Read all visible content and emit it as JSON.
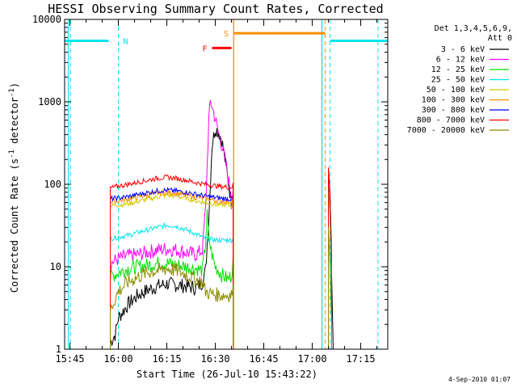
{
  "chart_data": {
    "type": "line",
    "title": "HESSI Observing Summary Count Rates, Corrected",
    "xlabel": "Start Time (26-Jul-10 15:43:22)",
    "ylabel": "Corrected Count Rate (s-1 detector-1)",
    "yscale": "log",
    "ylim": [
      1,
      10000
    ],
    "xlim": [
      "15:43:22",
      "17:23:22"
    ],
    "x_ticks": [
      "15:45",
      "16:00",
      "16:15",
      "16:30",
      "16:45",
      "17:00",
      "17:15"
    ],
    "y_ticks": [
      "1",
      "10",
      "100",
      "1000",
      "10000"
    ],
    "legend": {
      "placement": "right-outside",
      "title_lines": [
        "Det 1,3,4,5,6,9,",
        "Att 0"
      ]
    },
    "series": [
      {
        "name": "3 - 6 keV",
        "color": "#000000",
        "points": [
          [
            "15:57:30",
            1.2
          ],
          [
            "15:59",
            1.5
          ],
          [
            "16:00",
            2.4
          ],
          [
            "16:03",
            3.5
          ],
          [
            "16:06",
            4.5
          ],
          [
            "16:09",
            5.2
          ],
          [
            "16:12",
            5.8
          ],
          [
            "16:15",
            6.2
          ],
          [
            "16:18",
            6.0
          ],
          [
            "16:21",
            5.8
          ],
          [
            "16:24",
            5.5
          ],
          [
            "16:26",
            6.5
          ],
          [
            "16:27",
            9
          ],
          [
            "16:28",
            40
          ],
          [
            "16:29",
            300
          ],
          [
            "16:30",
            480
          ],
          [
            "16:31",
            430
          ],
          [
            "16:32",
            350
          ],
          [
            "16:33",
            200
          ],
          [
            "16:34",
            110
          ],
          [
            "16:35",
            60
          ],
          [
            "16:35:30",
            80
          ]
        ],
        "late": [
          [
            "17:05",
            140
          ],
          [
            "17:05:30",
            60
          ],
          [
            "17:06",
            8
          ],
          [
            "17:06:30",
            1
          ]
        ]
      },
      {
        "name": "6 - 12 keV",
        "color": "#ff00ff",
        "points": [
          [
            "15:57:30",
            11
          ],
          [
            "16:00",
            12.5
          ],
          [
            "16:03",
            13.5
          ],
          [
            "16:06",
            14
          ],
          [
            "16:09",
            15
          ],
          [
            "16:12",
            16
          ],
          [
            "16:15",
            16.5
          ],
          [
            "16:18",
            16
          ],
          [
            "16:21",
            15
          ],
          [
            "16:24",
            14
          ],
          [
            "16:26",
            16
          ],
          [
            "16:27",
            50
          ],
          [
            "16:28",
            600
          ],
          [
            "16:28:30",
            1000
          ],
          [
            "16:29",
            900
          ],
          [
            "16:30",
            620
          ],
          [
            "16:31",
            420
          ],
          [
            "16:32",
            300
          ],
          [
            "16:33",
            200
          ],
          [
            "16:34",
            120
          ],
          [
            "16:35",
            70
          ],
          [
            "16:35:30",
            90
          ]
        ],
        "late": [
          [
            "17:05",
            150
          ],
          [
            "17:05:30",
            70
          ],
          [
            "17:06",
            5
          ]
        ]
      },
      {
        "name": "12 - 25 keV",
        "color": "#00e000",
        "points": [
          [
            "15:57:30",
            7.5
          ],
          [
            "16:00",
            8.5
          ],
          [
            "16:03",
            9.5
          ],
          [
            "16:06",
            10
          ],
          [
            "16:09",
            10.5
          ],
          [
            "16:12",
            11
          ],
          [
            "16:15",
            11
          ],
          [
            "16:18",
            10.5
          ],
          [
            "16:21",
            10
          ],
          [
            "16:24",
            9.5
          ],
          [
            "16:26",
            9
          ],
          [
            "16:27",
            20
          ],
          [
            "16:27:30",
            42
          ],
          [
            "16:28",
            22
          ],
          [
            "16:29",
            14
          ],
          [
            "16:30",
            10
          ],
          [
            "16:31",
            9
          ],
          [
            "16:32",
            8
          ],
          [
            "16:33",
            7.5
          ],
          [
            "16:34",
            7
          ],
          [
            "16:35",
            8
          ],
          [
            "16:35:30",
            12
          ]
        ],
        "late": [
          [
            "17:05",
            100
          ],
          [
            "17:05:30",
            40
          ],
          [
            "17:06",
            5
          ]
        ]
      },
      {
        "name": "25 - 50 keV",
        "color": "#00e5ee",
        "points": [
          [
            "15:57:30",
            22
          ],
          [
            "16:00",
            23
          ],
          [
            "16:03",
            24
          ],
          [
            "16:06",
            26
          ],
          [
            "16:09",
            28
          ],
          [
            "16:12",
            30
          ],
          [
            "16:15",
            32
          ],
          [
            "16:18",
            31
          ],
          [
            "16:21",
            28
          ],
          [
            "16:24",
            25
          ],
          [
            "16:27",
            22
          ],
          [
            "16:30",
            21
          ],
          [
            "16:33",
            21
          ],
          [
            "16:35",
            21
          ],
          [
            "16:35:30",
            22
          ]
        ],
        "late": [
          [
            "17:05",
            130
          ],
          [
            "17:05:30",
            60
          ],
          [
            "17:06",
            5
          ]
        ]
      },
      {
        "name": "50 - 100 keV",
        "color": "#d8c800",
        "points": [
          [
            "15:57:30",
            55
          ],
          [
            "16:00",
            56
          ],
          [
            "16:03",
            58
          ],
          [
            "16:06",
            62
          ],
          [
            "16:09",
            66
          ],
          [
            "16:12",
            70
          ],
          [
            "16:15",
            74
          ],
          [
            "16:18",
            72
          ],
          [
            "16:21",
            68
          ],
          [
            "16:24",
            63
          ],
          [
            "16:27",
            60
          ],
          [
            "16:30",
            57
          ],
          [
            "16:33",
            56
          ],
          [
            "16:35",
            55
          ],
          [
            "16:35:30",
            58
          ]
        ],
        "late": [
          [
            "17:05",
            140
          ],
          [
            "17:05:30",
            70
          ],
          [
            "17:06",
            20
          ]
        ]
      },
      {
        "name": "100 - 300 keV",
        "color": "#ff8c00",
        "points": [
          [
            "15:57:30",
            62
          ],
          [
            "16:00",
            63
          ],
          [
            "16:03",
            66
          ],
          [
            "16:06",
            70
          ],
          [
            "16:09",
            74
          ],
          [
            "16:12",
            78
          ],
          [
            "16:15",
            80
          ],
          [
            "16:18",
            78
          ],
          [
            "16:21",
            74
          ],
          [
            "16:24",
            70
          ],
          [
            "16:27",
            67
          ],
          [
            "16:30",
            64
          ],
          [
            "16:33",
            62
          ],
          [
            "16:35",
            62
          ],
          [
            "16:35:30",
            65
          ]
        ],
        "late": [
          [
            "17:05",
            155
          ],
          [
            "17:05:30",
            80
          ],
          [
            "17:06",
            15
          ]
        ]
      },
      {
        "name": "300 - 800 keV",
        "color": "#0000ff",
        "points": [
          [
            "15:57:30",
            67
          ],
          [
            "16:00",
            68
          ],
          [
            "16:03",
            71
          ],
          [
            "16:06",
            75
          ],
          [
            "16:09",
            79
          ],
          [
            "16:12",
            83
          ],
          [
            "16:15",
            85
          ],
          [
            "16:18",
            83
          ],
          [
            "16:21",
            80
          ],
          [
            "16:24",
            76
          ],
          [
            "16:27",
            72
          ],
          [
            "16:30",
            69
          ],
          [
            "16:33",
            67
          ],
          [
            "16:35",
            66
          ],
          [
            "16:35:30",
            70
          ]
        ],
        "late": [
          [
            "17:05",
            150
          ],
          [
            "17:05:30",
            75
          ],
          [
            "17:06",
            12
          ]
        ]
      },
      {
        "name": "800 - 7000 keV",
        "color": "#ff0000",
        "points": [
          [
            "15:57:30",
            90
          ],
          [
            "16:00",
            95
          ],
          [
            "16:03",
            100
          ],
          [
            "16:06",
            106
          ],
          [
            "16:09",
            112
          ],
          [
            "16:12",
            118
          ],
          [
            "16:15",
            122
          ],
          [
            "16:18",
            118
          ],
          [
            "16:21",
            112
          ],
          [
            "16:24",
            105
          ],
          [
            "16:27",
            100
          ],
          [
            "16:30",
            96
          ],
          [
            "16:33",
            93
          ],
          [
            "16:35",
            92
          ],
          [
            "16:35:30",
            98
          ]
        ],
        "late": [
          [
            "17:05",
            160
          ],
          [
            "17:05:30",
            80
          ],
          [
            "17:06",
            10
          ]
        ]
      },
      {
        "name": "7000 - 20000 keV",
        "color": "#8b8b00",
        "points": [
          [
            "15:57:30",
            3
          ],
          [
            "16:00",
            5
          ],
          [
            "16:03",
            6.5
          ],
          [
            "16:06",
            7.5
          ],
          [
            "16:09",
            8.5
          ],
          [
            "16:12",
            9
          ],
          [
            "16:15",
            9.5
          ],
          [
            "16:18",
            9
          ],
          [
            "16:21",
            8
          ],
          [
            "16:24",
            7
          ],
          [
            "16:26",
            6.5
          ],
          [
            "16:27",
            5
          ],
          [
            "16:28",
            4.8
          ],
          [
            "16:30",
            4.6
          ],
          [
            "16:33",
            4.5
          ],
          [
            "16:35",
            4.6
          ],
          [
            "16:35:30",
            5
          ]
        ],
        "late": [
          [
            "17:05",
            30
          ],
          [
            "17:05:30",
            10
          ],
          [
            "17:06",
            2
          ]
        ]
      }
    ],
    "flags": [
      {
        "label": "N",
        "color": "#00e5ee",
        "level": 5500,
        "segments": [
          [
            "15:43:22",
            "15:57:00"
          ],
          [
            "17:05:30",
            "17:23:22"
          ]
        ],
        "dashed_at": [
          "15:45:10",
          "16:00:00",
          "17:05:30",
          "17:20:20"
        ],
        "solid_at": [
          "17:03:00"
        ]
      },
      {
        "label": "F",
        "color": "#ff0000",
        "level": 4500,
        "segments": [
          [
            "16:29:00",
            "16:35:00"
          ]
        ]
      },
      {
        "label": "S",
        "color": "#ff8c00",
        "level": 6800,
        "segments": [
          [
            "16:35:40",
            "17:04:00"
          ]
        ],
        "dashed_at": [
          "17:04:00"
        ],
        "solid_at": [
          "16:35:40"
        ]
      }
    ],
    "date_stamp": "4-Sep-2010 01:07"
  }
}
